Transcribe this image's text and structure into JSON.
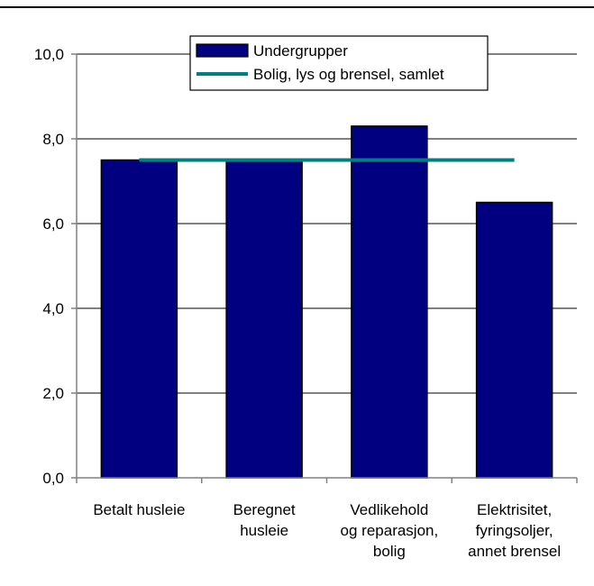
{
  "chart_data": {
    "type": "bar",
    "categories": [
      [
        "Betalt husleie"
      ],
      [
        "Beregnet",
        "husleie"
      ],
      [
        "Vedlikehold",
        "og reparasjon,",
        "bolig"
      ],
      [
        "Elektrisitet,",
        "fyringsoljer,",
        "annet brensel"
      ]
    ],
    "series": [
      {
        "name": "Undergrupper",
        "type": "bar",
        "color": "#000080",
        "values": [
          7.5,
          7.5,
          8.3,
          6.5
        ]
      },
      {
        "name": "Bolig, lys og brensel, samlet",
        "type": "line",
        "color": "#008080",
        "values": [
          7.5,
          7.5,
          7.5,
          7.5
        ]
      }
    ],
    "yticks": [
      "0,0",
      "2,0",
      "4,0",
      "6,0",
      "8,0",
      "10,0"
    ],
    "ylim": [
      0,
      10
    ],
    "grid": true,
    "legend_position": "top-center",
    "title": "",
    "xlabel": "",
    "ylabel": ""
  }
}
